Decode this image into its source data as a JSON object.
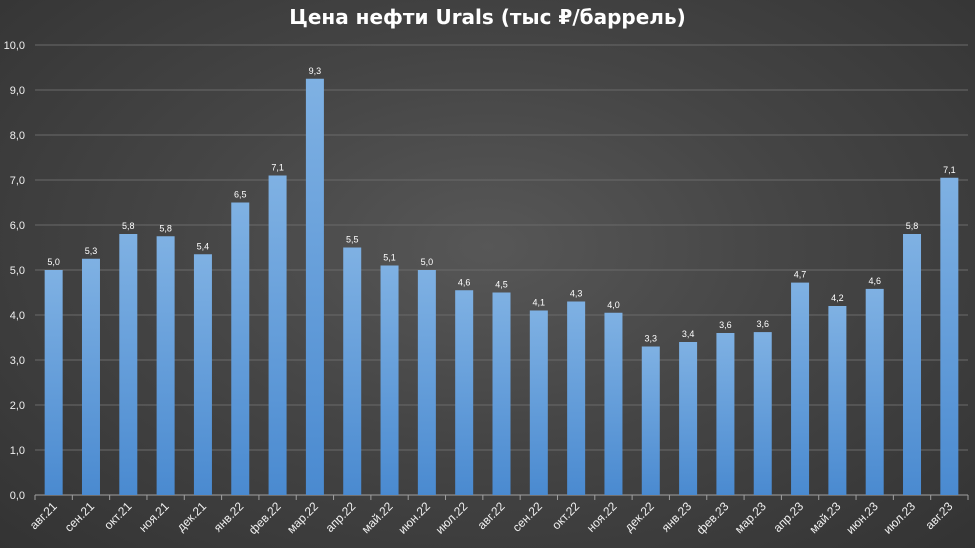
{
  "chart_data": {
    "type": "bar",
    "title": "Цена нефти Urals (тыс ₽/баррель)",
    "categories": [
      "авг.21",
      "сен.21",
      "окт.21",
      "ноя.21",
      "дек.21",
      "янв.22",
      "фев.22",
      "мар.22",
      "апр.22",
      "май.22",
      "июн.22",
      "июл.22",
      "авг.22",
      "сен.22",
      "окт.22",
      "ноя.22",
      "дек.22",
      "янв.23",
      "фев.23",
      "мар.23",
      "апр.23",
      "май.23",
      "июн.23",
      "июл.23",
      "авг.23"
    ],
    "values": [
      5.0,
      5.25,
      5.8,
      5.75,
      5.35,
      6.5,
      7.1,
      9.25,
      5.5,
      5.1,
      5.0,
      4.55,
      4.5,
      4.1,
      4.3,
      4.05,
      3.3,
      3.4,
      3.6,
      3.62,
      4.72,
      4.2,
      4.58,
      5.8,
      7.05
    ],
    "data_labels": [
      "5,0",
      "5,3",
      "5,8",
      "5,8",
      "5,4",
      "6,5",
      "7,1",
      "9,3",
      "5,5",
      "5,1",
      "5,0",
      "4,6",
      "4,5",
      "4,1",
      "4,3",
      "4,0",
      "3,3",
      "3,4",
      "3,6",
      "3,6",
      "4,7",
      "4,2",
      "4,6",
      "5,8",
      "7,1"
    ],
    "y_ticks": [
      "0,0",
      "1,0",
      "2,0",
      "3,0",
      "4,0",
      "5,0",
      "6,0",
      "7,0",
      "8,0",
      "9,0",
      "10,0"
    ],
    "ylim": [
      0,
      10
    ],
    "xlabel": "",
    "ylabel": "",
    "grid": true,
    "legend": "none",
    "colors": {
      "bar_top": "#7fb1e3",
      "bar_bottom": "#4a8ad0",
      "grid": "#6a6a6a",
      "axis": "#a0a0a0"
    }
  }
}
